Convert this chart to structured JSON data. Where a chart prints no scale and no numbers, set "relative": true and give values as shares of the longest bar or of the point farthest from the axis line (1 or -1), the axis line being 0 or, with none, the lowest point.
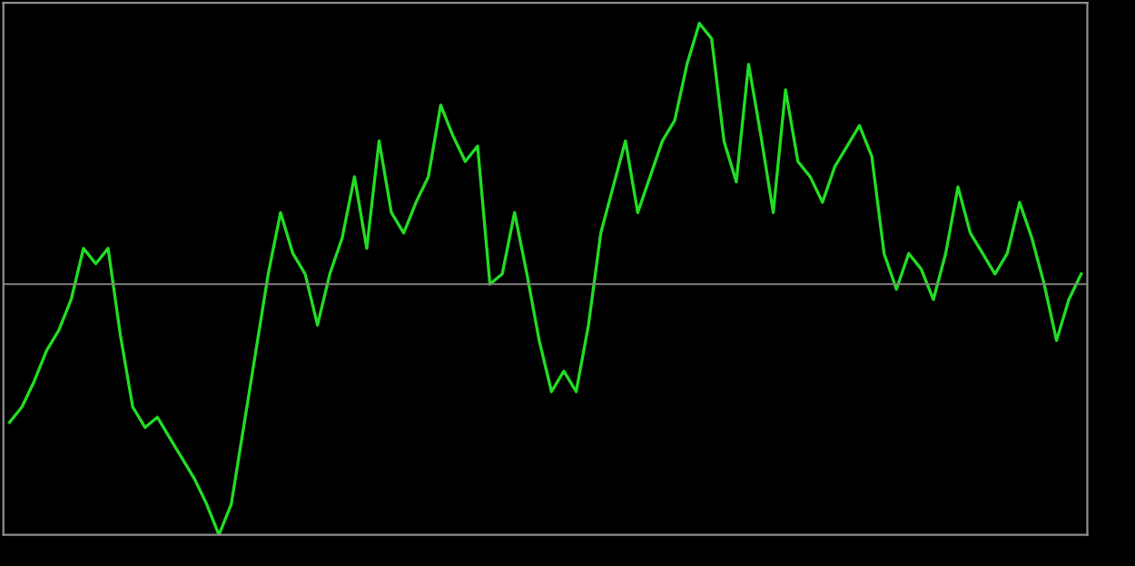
{
  "chart_data": {
    "type": "line",
    "relative": true,
    "grid": false,
    "marker": "none",
    "line_style": "solid",
    "categories": [
      null,
      null,
      null,
      null,
      null,
      null,
      null,
      null,
      null,
      null,
      null,
      null,
      null,
      null,
      null,
      null,
      null,
      null,
      null,
      null,
      null,
      null,
      null,
      null,
      null,
      null,
      null,
      null,
      null,
      null,
      null,
      null,
      null,
      null,
      null,
      null,
      null,
      null,
      null,
      null,
      null,
      null,
      null,
      null,
      null,
      null,
      null,
      null,
      null,
      null,
      null,
      null,
      null,
      null,
      null,
      null,
      null,
      null,
      null,
      null,
      null,
      null,
      null,
      null,
      null,
      null,
      null,
      null,
      null,
      null,
      null,
      null,
      null,
      null,
      null,
      null,
      null,
      null,
      null,
      null,
      null,
      null,
      null,
      null,
      null,
      null,
      null,
      null
    ],
    "series": [
      {
        "color": "#22dd22",
        "values": [
          0.22,
          0.25,
          0.3,
          0.36,
          0.4,
          0.46,
          0.56,
          0.53,
          0.56,
          0.39,
          0.25,
          0.21,
          0.23,
          0.19,
          0.15,
          0.11,
          0.06,
          0,
          0.06,
          0.21,
          0.36,
          0.51,
          0.63,
          0.55,
          0.51,
          0.41,
          0.51,
          0.58,
          0.7,
          0.56,
          0.77,
          0.63,
          0.59,
          0.65,
          0.7,
          0.84,
          0.78,
          0.73,
          0.76,
          0.49,
          0.51,
          0.63,
          0.51,
          0.38,
          0.28,
          0.32,
          0.28,
          0.41,
          0.59,
          0.68,
          0.77,
          0.63,
          0.7,
          0.77,
          0.81,
          0.92,
          1,
          0.97,
          0.77,
          0.69,
          0.92,
          0.78,
          0.63,
          0.87,
          0.73,
          0.7,
          0.65,
          0.72,
          0.76,
          0.8,
          0.74,
          0.55,
          0.48,
          0.55,
          0.52,
          0.46,
          0.55,
          0.68,
          0.59,
          0.55,
          0.51,
          0.55,
          0.65,
          0.58,
          0.49,
          0.38,
          0.46,
          0.51
        ]
      }
    ],
    "ref_lines": [
      {
        "axis": "y",
        "value": 0.49,
        "color": "#808080"
      }
    ]
  }
}
